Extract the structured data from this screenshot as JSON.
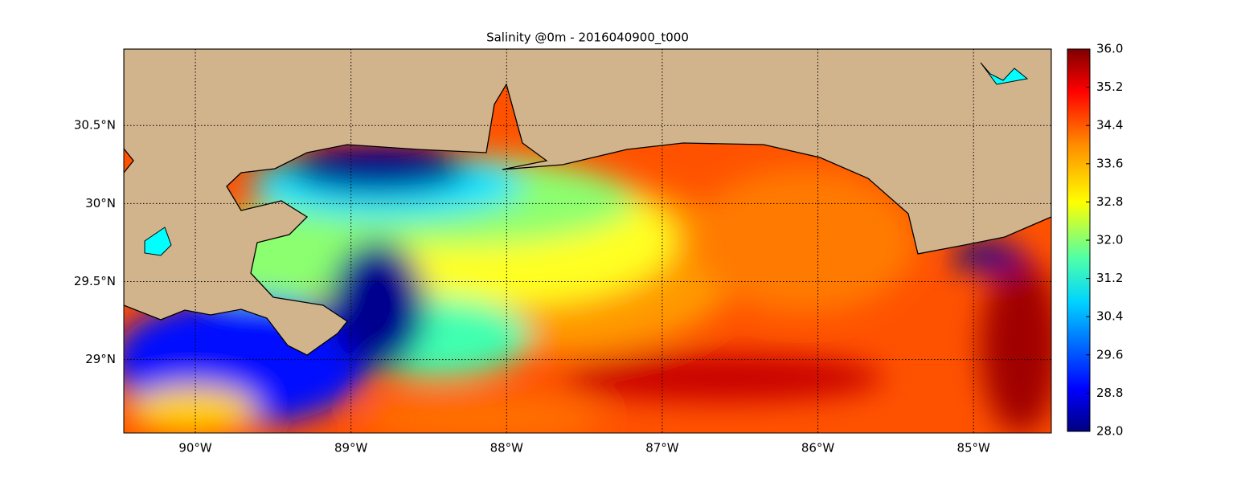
{
  "chart_data": {
    "type": "map",
    "title": "Salinity @0m - 2016040900_t000",
    "xlim": [
      -90.46,
      -84.5
    ],
    "ylim": [
      28.53,
      30.99
    ],
    "xticks": [
      {
        "value": -90,
        "label": "90°W"
      },
      {
        "value": -89,
        "label": "89°W"
      },
      {
        "value": -88,
        "label": "88°W"
      },
      {
        "value": -87,
        "label": "87°W"
      },
      {
        "value": -86,
        "label": "86°W"
      },
      {
        "value": -85,
        "label": "85°W"
      }
    ],
    "yticks": [
      {
        "value": 29,
        "label": "29°N"
      },
      {
        "value": 29.5,
        "label": "29.5°N"
      },
      {
        "value": 30,
        "label": "30°N"
      },
      {
        "value": 30.5,
        "label": "30.5°N"
      }
    ],
    "grid": true,
    "colorbar": {
      "lim": [
        28,
        36
      ],
      "ticks": [
        {
          "value": 28,
          "label": "28.0"
        },
        {
          "value": 28.8,
          "label": "28.8"
        },
        {
          "value": 29.6,
          "label": "29.6"
        },
        {
          "value": 30.4,
          "label": "30.4"
        },
        {
          "value": 31.2,
          "label": "31.2"
        },
        {
          "value": 32,
          "label": "32.0"
        },
        {
          "value": 32.8,
          "label": "32.8"
        },
        {
          "value": 33.6,
          "label": "33.6"
        },
        {
          "value": 34.4,
          "label": "34.4"
        },
        {
          "value": 35.2,
          "label": "35.2"
        },
        {
          "value": 36,
          "label": "36.0"
        }
      ]
    }
  }
}
